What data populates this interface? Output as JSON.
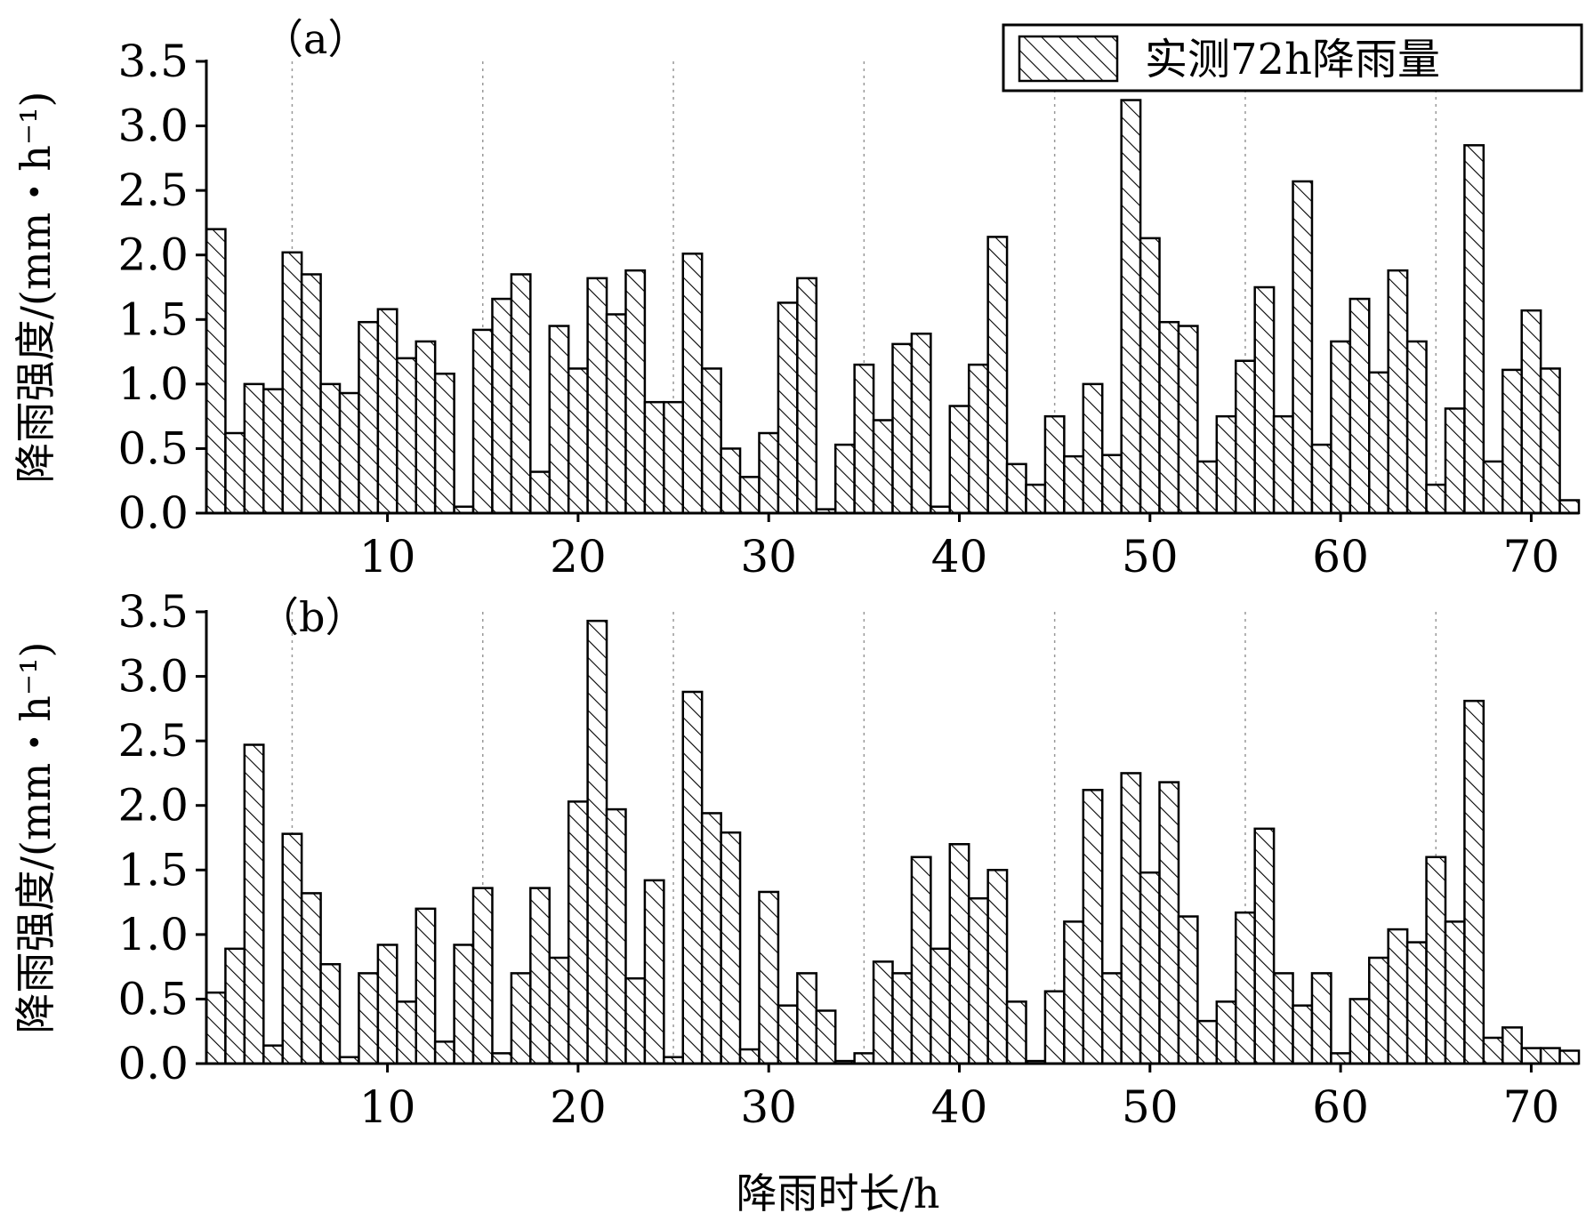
{
  "legend": {
    "label": "实测72h降雨量"
  },
  "x_axis_title": "降雨时长/h",
  "chart_data": [
    {
      "type": "bar",
      "panel_label": "（a）",
      "ylabel": "降雨强度/(mm・h⁻¹)",
      "xlim": [
        0.5,
        72.5
      ],
      "ylim": [
        0,
        3.5
      ],
      "x_ticks": [
        10,
        20,
        30,
        40,
        50,
        60,
        70
      ],
      "y_ticks": [
        "0.0",
        "0.5",
        "1.0",
        "1.5",
        "2.0",
        "2.5",
        "3.0",
        "3.5"
      ],
      "grid_x": [
        5,
        15,
        25,
        35,
        45,
        55,
        65
      ],
      "legend_position": "top-right",
      "series": [
        {
          "name": "实测72h降雨量",
          "x": [
            1,
            2,
            3,
            4,
            5,
            6,
            7,
            8,
            9,
            10,
            11,
            12,
            13,
            14,
            15,
            16,
            17,
            18,
            19,
            20,
            21,
            22,
            23,
            24,
            25,
            26,
            27,
            28,
            29,
            30,
            31,
            32,
            33,
            34,
            35,
            36,
            37,
            38,
            39,
            40,
            41,
            42,
            43,
            44,
            45,
            46,
            47,
            48,
            49,
            50,
            51,
            52,
            53,
            54,
            55,
            56,
            57,
            58,
            59,
            60,
            61,
            62,
            63,
            64,
            65,
            66,
            67,
            68,
            69,
            70,
            71,
            72
          ],
          "values": [
            2.2,
            0.62,
            1.0,
            0.96,
            2.02,
            1.85,
            1.0,
            0.93,
            1.48,
            1.58,
            1.2,
            1.33,
            1.08,
            0.05,
            1.42,
            1.66,
            1.85,
            0.32,
            1.45,
            1.12,
            1.82,
            1.54,
            1.88,
            0.86,
            0.86,
            2.01,
            1.12,
            0.5,
            0.28,
            0.62,
            1.63,
            1.82,
            0.03,
            0.53,
            1.15,
            0.72,
            1.31,
            1.39,
            0.05,
            0.83,
            1.15,
            2.14,
            0.38,
            0.22,
            0.75,
            0.44,
            1.0,
            0.45,
            3.2,
            2.13,
            1.48,
            1.45,
            0.4,
            0.75,
            1.18,
            1.75,
            0.75,
            2.57,
            0.53,
            1.33,
            1.66,
            1.09,
            1.88,
            1.33,
            0.22,
            0.81,
            2.85,
            0.4,
            1.11,
            1.57,
            1.12,
            0.1
          ]
        }
      ]
    },
    {
      "type": "bar",
      "panel_label": "（b）",
      "ylabel": "降雨强度/(mm・h⁻¹)",
      "xlim": [
        0.5,
        72.5
      ],
      "ylim": [
        0,
        3.5
      ],
      "x_ticks": [
        10,
        20,
        30,
        40,
        50,
        60,
        70
      ],
      "y_ticks": [
        "0.0",
        "0.5",
        "1.0",
        "1.5",
        "2.0",
        "2.5",
        "3.0",
        "3.5"
      ],
      "grid_x": [
        5,
        15,
        25,
        35,
        45,
        55,
        65
      ],
      "series": [
        {
          "name": "实测72h降雨量",
          "x": [
            1,
            2,
            3,
            4,
            5,
            6,
            7,
            8,
            9,
            10,
            11,
            12,
            13,
            14,
            15,
            16,
            17,
            18,
            19,
            20,
            21,
            22,
            23,
            24,
            25,
            26,
            27,
            28,
            29,
            30,
            31,
            32,
            33,
            34,
            35,
            36,
            37,
            38,
            39,
            40,
            41,
            42,
            43,
            44,
            45,
            46,
            47,
            48,
            49,
            50,
            51,
            52,
            53,
            54,
            55,
            56,
            57,
            58,
            59,
            60,
            61,
            62,
            63,
            64,
            65,
            66,
            67,
            68,
            69,
            70,
            71,
            72
          ],
          "values": [
            0.55,
            0.89,
            2.47,
            0.14,
            1.78,
            1.32,
            0.77,
            0.05,
            0.7,
            0.92,
            0.48,
            1.2,
            0.17,
            0.92,
            1.36,
            0.08,
            0.7,
            1.36,
            0.82,
            2.03,
            3.43,
            1.97,
            0.66,
            1.42,
            0.05,
            2.88,
            1.94,
            1.79,
            0.11,
            1.33,
            0.45,
            0.7,
            0.41,
            0.02,
            0.08,
            0.79,
            0.7,
            1.6,
            0.89,
            1.7,
            1.28,
            1.5,
            0.48,
            0.02,
            0.56,
            1.1,
            2.12,
            0.7,
            2.25,
            1.48,
            2.18,
            1.14,
            0.33,
            0.48,
            1.17,
            1.82,
            0.7,
            0.45,
            0.7,
            0.08,
            0.5,
            0.82,
            1.04,
            0.94,
            1.6,
            1.1,
            2.81,
            0.2,
            0.28,
            0.12,
            0.12,
            0.1
          ]
        }
      ]
    }
  ]
}
